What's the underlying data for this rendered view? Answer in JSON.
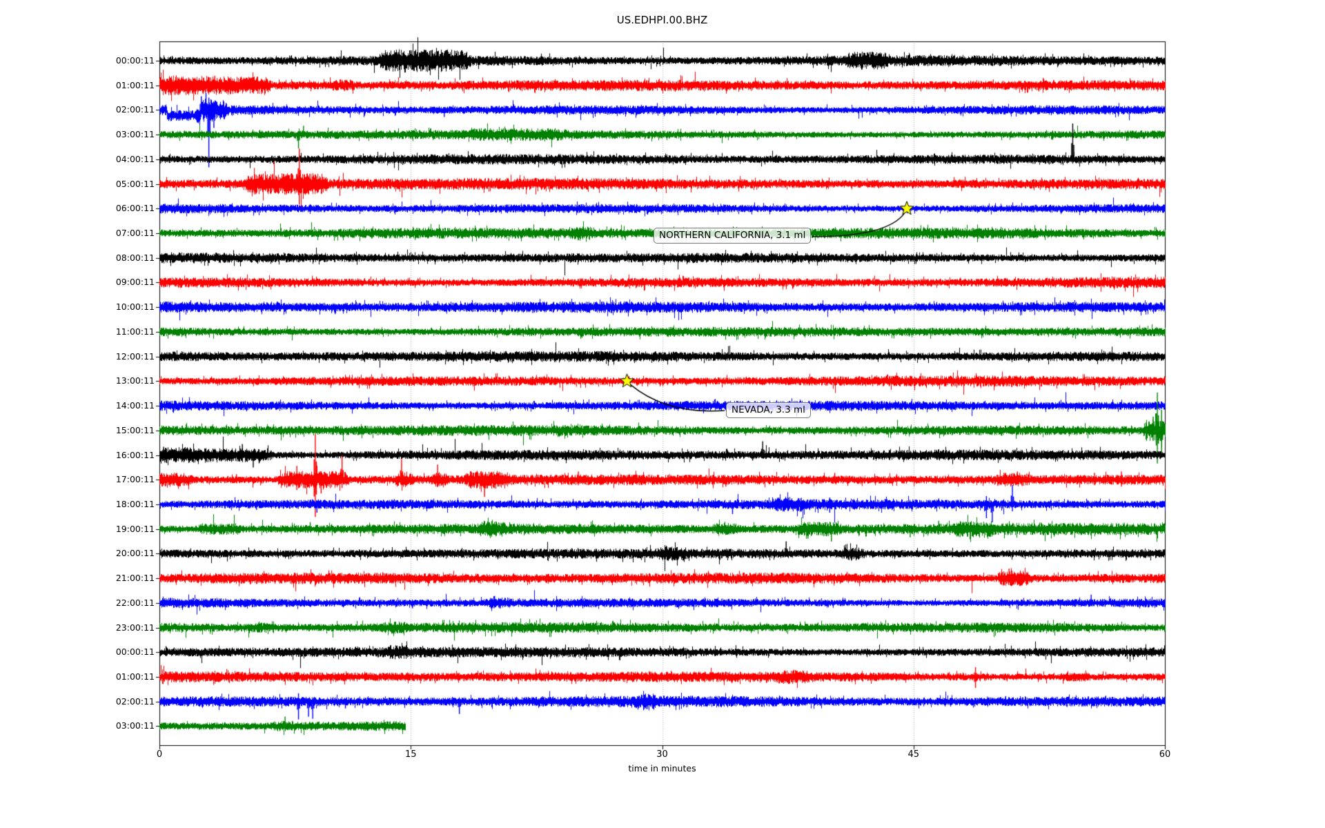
{
  "title": "US.EDHPI.00.BHZ",
  "xlabel": "time in minutes",
  "x_ticks": [
    {
      "label": "0",
      "minute": 0
    },
    {
      "label": "15",
      "minute": 15
    },
    {
      "label": "30",
      "minute": 30
    },
    {
      "label": "45",
      "minute": 45
    },
    {
      "label": "60",
      "minute": 60
    }
  ],
  "colors": {
    "trace_cycle": [
      "#000000",
      "#ff0000",
      "#0000ff",
      "#008000"
    ],
    "grid": "#aaaaaa",
    "axis": "#000000",
    "star_fill": "#ffff00",
    "star_edge": "#000000",
    "annotation_border": "#777777"
  },
  "events": [
    {
      "label": "NORTHERN CALIFORNIA, 3.1 ml",
      "row": 6,
      "minute": 44.6
    },
    {
      "label": "NEVADA, 3.3 ml",
      "row": 13,
      "minute": 27.9
    }
  ],
  "chart_data": {
    "type": "line",
    "subtype": "helicorder-dayplot",
    "title": "US.EDHPI.00.BHZ",
    "xlabel": "time in minutes",
    "x_range_minutes": [
      0,
      60
    ],
    "minutes_per_row": 60,
    "grid_minutes": [
      15,
      30,
      45
    ],
    "rows": [
      {
        "label": "00:00:11",
        "color_index": 0,
        "bursts": [
          [
            13.3,
            18.2,
            2.2
          ],
          [
            41.2,
            43.2,
            1.7
          ]
        ],
        "spikes": [
          [
            14.2,
            10,
            6
          ],
          [
            14.65,
            4,
            17
          ],
          [
            16.4,
            9,
            5
          ],
          [
            17.3,
            10,
            8
          ],
          [
            42.6,
            6,
            9
          ]
        ],
        "offsets": [],
        "end_minute": 60
      },
      {
        "label": "01:00:11",
        "color_index": 1,
        "bursts": [
          [
            0,
            6.3,
            1.9
          ],
          [
            10.4,
            11.3,
            1.5
          ]
        ],
        "spikes": [
          [
            2.9,
            8,
            10
          ],
          [
            3.3,
            14,
            6
          ],
          [
            4.9,
            11,
            5
          ],
          [
            10.9,
            8,
            4
          ]
        ],
        "offsets": [],
        "end_minute": 60
      },
      {
        "label": "02:00:11",
        "color_index": 2,
        "bursts": [
          [
            2.4,
            3.7,
            2.2
          ]
        ],
        "spikes": [
          [
            2.5,
            20,
            5
          ],
          [
            2.78,
            25,
            6
          ],
          [
            2.95,
            18,
            83
          ],
          [
            3.25,
            7,
            26
          ],
          [
            17.0,
            3,
            10
          ]
        ],
        "offsets": [
          [
            0.45,
            2.45,
            8
          ]
        ],
        "end_minute": 60
      },
      {
        "label": "03:00:11",
        "color_index": 3,
        "bursts": [
          [
            18.8,
            24,
            1.35
          ]
        ],
        "spikes": [
          [
            8.3,
            5,
            20
          ],
          [
            8.6,
            13,
            4
          ],
          [
            18.8,
            9,
            4
          ],
          [
            20.9,
            7,
            5
          ],
          [
            23.3,
            6,
            4
          ],
          [
            32.4,
            6,
            3
          ]
        ],
        "offsets": [],
        "end_minute": 60
      },
      {
        "label": "04:00:11",
        "color_index": 0,
        "bursts": [],
        "spikes": [
          [
            12.5,
            4,
            4
          ],
          [
            54.5,
            52,
            6
          ]
        ],
        "offsets": [],
        "end_minute": 60
      },
      {
        "label": "05:00:11",
        "color_index": 1,
        "bursts": [
          [
            5.3,
            9.6,
            2.3
          ]
        ],
        "spikes": [
          [
            7.0,
            9,
            12
          ],
          [
            7.55,
            12,
            8
          ],
          [
            8.35,
            51,
            30
          ],
          [
            8.8,
            12,
            14
          ],
          [
            9.25,
            8,
            6
          ]
        ],
        "offsets": [],
        "end_minute": 60
      },
      {
        "label": "06:00:11",
        "color_index": 2,
        "bursts": [],
        "spikes": [],
        "offsets": [],
        "end_minute": 60
      },
      {
        "label": "07:00:11",
        "color_index": 3,
        "bursts": [
          [
            24.6,
            25.6,
            1.5
          ]
        ],
        "spikes": [],
        "offsets": [],
        "end_minute": 60
      },
      {
        "label": "08:00:11",
        "color_index": 0,
        "bursts": [],
        "spikes": [],
        "offsets": [],
        "end_minute": 60
      },
      {
        "label": "09:00:11",
        "color_index": 1,
        "bursts": [],
        "spikes": [],
        "offsets": [],
        "end_minute": 60
      },
      {
        "label": "10:00:11",
        "color_index": 2,
        "bursts": [],
        "spikes": [],
        "offsets": [],
        "end_minute": 60
      },
      {
        "label": "11:00:11",
        "color_index": 3,
        "bursts": [],
        "spikes": [],
        "offsets": [],
        "end_minute": 60
      },
      {
        "label": "12:00:11",
        "color_index": 0,
        "bursts": [],
        "spikes": [],
        "offsets": [],
        "end_minute": 60
      },
      {
        "label": "13:00:11",
        "color_index": 1,
        "bursts": [],
        "spikes": [],
        "offsets": [],
        "end_minute": 60
      },
      {
        "label": "14:00:11",
        "color_index": 2,
        "bursts": [],
        "spikes": [],
        "offsets": [],
        "end_minute": 60
      },
      {
        "label": "15:00:11",
        "color_index": 3,
        "bursts": [
          [
            58.9,
            60,
            2.8
          ]
        ],
        "spikes": [
          [
            59.3,
            20,
            15
          ],
          [
            59.55,
            55,
            48
          ],
          [
            59.8,
            30,
            34
          ]
        ],
        "offsets": [],
        "end_minute": 60
      },
      {
        "label": "16:00:11",
        "color_index": 0,
        "bursts": [
          [
            0,
            6.4,
            2.2
          ]
        ],
        "spikes": [
          [
            0.25,
            12,
            8
          ],
          [
            1.0,
            10,
            10
          ],
          [
            4.95,
            16,
            6
          ],
          [
            5.6,
            6,
            18
          ],
          [
            5.95,
            8,
            12
          ],
          [
            35.4,
            3,
            8
          ],
          [
            36.0,
            20,
            5
          ],
          [
            38.3,
            6,
            6
          ]
        ],
        "offsets": [],
        "end_minute": 60
      },
      {
        "label": "17:00:11",
        "color_index": 1,
        "bursts": [
          [
            0,
            1.6,
            1.8
          ],
          [
            7.3,
            11.0,
            2.5
          ],
          [
            14.2,
            14.9,
            1.9
          ],
          [
            16.3,
            16.9,
            1.8
          ],
          [
            18.4,
            20.6,
            1.9
          ],
          [
            50.0,
            51.6,
            1.6
          ]
        ],
        "spikes": [
          [
            4.6,
            8,
            5
          ],
          [
            8.2,
            20,
            15
          ],
          [
            9.3,
            66,
            54
          ],
          [
            9.65,
            12,
            20
          ],
          [
            10.9,
            35,
            12
          ],
          [
            14.45,
            30,
            8
          ],
          [
            16.6,
            22,
            10
          ],
          [
            19.4,
            8,
            25
          ],
          [
            25.0,
            12,
            8
          ],
          [
            33.8,
            4,
            10
          ],
          [
            40.3,
            10,
            5
          ],
          [
            44.0,
            8,
            4
          ],
          [
            50.4,
            10,
            6
          ],
          [
            51.2,
            12,
            6
          ],
          [
            55.8,
            10,
            8
          ],
          [
            57.4,
            12,
            10
          ]
        ],
        "offsets": [],
        "end_minute": 60
      },
      {
        "label": "18:00:11",
        "color_index": 2,
        "bursts": [
          [
            36.8,
            38.2,
            1.5
          ]
        ],
        "spikes": [
          [
            5.8,
            4,
            8
          ],
          [
            9.4,
            4,
            12
          ],
          [
            34.2,
            3,
            14
          ],
          [
            36.9,
            4,
            10
          ],
          [
            40.0,
            10,
            12
          ],
          [
            43.3,
            8,
            6
          ],
          [
            49.35,
            12,
            20
          ],
          [
            49.7,
            4,
            26
          ],
          [
            50.9,
            28,
            10
          ],
          [
            55.4,
            6,
            6
          ]
        ],
        "offsets": [],
        "end_minute": 60
      },
      {
        "label": "19:00:11",
        "color_index": 3,
        "bursts": [
          [
            2.5,
            4.6,
            1.7
          ],
          [
            19.2,
            20.3,
            1.6
          ],
          [
            33.2,
            34.2,
            1.5
          ],
          [
            38.2,
            40.3,
            1.7
          ],
          [
            47.5,
            49.5,
            1.5
          ]
        ],
        "spikes": [
          [
            9.0,
            10,
            4
          ],
          [
            38.7,
            10,
            14
          ],
          [
            40.1,
            4,
            18
          ],
          [
            44.8,
            4,
            12
          ],
          [
            46.5,
            12,
            8
          ],
          [
            50.6,
            8,
            6
          ],
          [
            53.5,
            8,
            4
          ]
        ],
        "offsets": [],
        "end_minute": 60
      },
      {
        "label": "20:00:11",
        "color_index": 0,
        "bursts": [
          [
            29.8,
            31.2,
            1.4
          ],
          [
            40.9,
            41.7,
            1.6
          ]
        ],
        "spikes": [
          [
            20.2,
            5,
            8
          ],
          [
            30.5,
            6,
            4
          ],
          [
            35.2,
            4,
            6
          ],
          [
            37.4,
            18,
            4
          ],
          [
            41.3,
            6,
            10
          ]
        ],
        "offsets": [],
        "end_minute": 60
      },
      {
        "label": "21:00:11",
        "color_index": 1,
        "bursts": [
          [
            50.2,
            51.7,
            2.1
          ]
        ],
        "spikes": [
          [
            42.3,
            6,
            4
          ],
          [
            50.7,
            14,
            6
          ],
          [
            51.2,
            8,
            10
          ]
        ],
        "offsets": [],
        "end_minute": 60
      },
      {
        "label": "22:00:11",
        "color_index": 2,
        "bursts": [
          [
            19.8,
            20.7,
            1.5
          ]
        ],
        "spikes": [
          [
            15.1,
            4,
            8
          ],
          [
            20.0,
            10,
            6
          ],
          [
            20.35,
            6,
            8
          ],
          [
            55.6,
            12,
            3
          ]
        ],
        "offsets": [],
        "end_minute": 60
      },
      {
        "label": "23:00:11",
        "color_index": 3,
        "bursts": [
          [
            5.5,
            6.6,
            1.35
          ],
          [
            13.5,
            14.5,
            1.35
          ]
        ],
        "spikes": [],
        "offsets": [],
        "end_minute": 60
      },
      {
        "label": "00:00:11",
        "color_index": 0,
        "bursts": [
          [
            13.8,
            14.7,
            1.4
          ]
        ],
        "spikes": [
          [
            14.2,
            6,
            5
          ],
          [
            26.5,
            4,
            6
          ]
        ],
        "offsets": [],
        "end_minute": 60
      },
      {
        "label": "01:00:11",
        "color_index": 1,
        "bursts": [
          [
            37.0,
            38.6,
            1.4
          ],
          [
            54.0,
            55.2,
            1.4
          ]
        ],
        "spikes": [
          [
            37.3,
            5,
            5
          ],
          [
            48.7,
            14,
            16
          ],
          [
            54.6,
            6,
            6
          ]
        ],
        "offsets": [],
        "end_minute": 60
      },
      {
        "label": "02:00:11",
        "color_index": 2,
        "bursts": [
          [
            28.6,
            29.4,
            1.5
          ]
        ],
        "spikes": [
          [
            5.4,
            3,
            8
          ],
          [
            8.3,
            12,
            26
          ],
          [
            8.9,
            5,
            22
          ],
          [
            9.15,
            4,
            25
          ],
          [
            11.1,
            4,
            10
          ],
          [
            17.9,
            6,
            18
          ],
          [
            29.0,
            10,
            6
          ],
          [
            50.5,
            8,
            6
          ]
        ],
        "offsets": [],
        "end_minute": 60
      },
      {
        "label": "03:00:11",
        "color_index": 3,
        "bursts": [
          [
            6.9,
            7.9,
            1.35
          ]
        ],
        "spikes": [
          [
            7.5,
            14,
            4
          ]
        ],
        "offsets": [],
        "end_minute": 14.7
      }
    ]
  }
}
